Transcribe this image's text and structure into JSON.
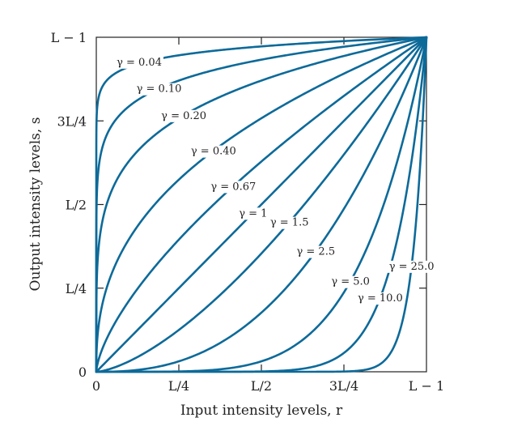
{
  "chart_data": {
    "type": "line",
    "title": "",
    "xlabel": "Input intensity levels, r",
    "ylabel": "Output intensity levels, s",
    "xlim": [
      0,
      1
    ],
    "ylim": [
      0,
      1
    ],
    "x_ticks": [
      {
        "value": 0,
        "label": "0"
      },
      {
        "value": 0.25,
        "label": "L/4"
      },
      {
        "value": 0.5,
        "label": "L/2"
      },
      {
        "value": 0.75,
        "label": "3L/4"
      },
      {
        "value": 1,
        "label": "L − 1"
      }
    ],
    "y_ticks": [
      {
        "value": 0,
        "label": "0"
      },
      {
        "value": 0.25,
        "label": "L/4"
      },
      {
        "value": 0.5,
        "label": "L/2"
      },
      {
        "value": 0.75,
        "label": "3L/4"
      },
      {
        "value": 1,
        "label": "L − 1"
      }
    ],
    "curve_color": "#0d6a99",
    "series": [
      {
        "label": "γ = 0.04",
        "gamma": 0.04
      },
      {
        "label": "γ = 0.10",
        "gamma": 0.1
      },
      {
        "label": "γ = 0.20",
        "gamma": 0.2
      },
      {
        "label": "γ = 0.40",
        "gamma": 0.4
      },
      {
        "label": "γ = 0.67",
        "gamma": 0.67
      },
      {
        "label": "γ = 1",
        "gamma": 1
      },
      {
        "label": "γ = 1.5",
        "gamma": 1.5
      },
      {
        "label": "γ = 2.5",
        "gamma": 2.5
      },
      {
        "label": "γ = 5.0",
        "gamma": 5.0
      },
      {
        "label": "γ = 10.0",
        "gamma": 10.0
      },
      {
        "label": "γ = 25.0",
        "gamma": 25.0
      }
    ]
  }
}
